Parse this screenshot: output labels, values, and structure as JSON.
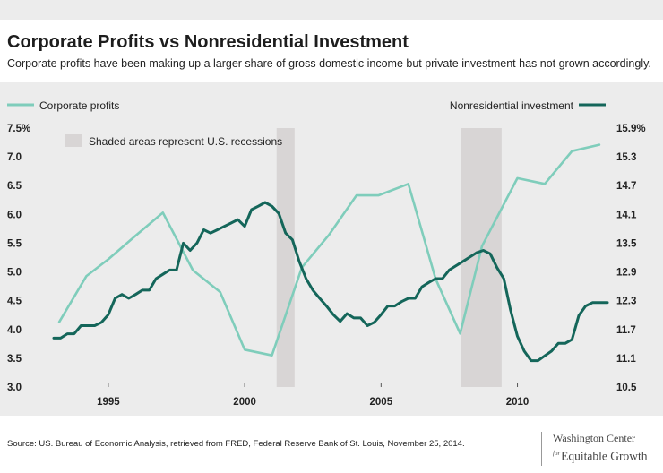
{
  "title": "Corporate Profits vs Nonresidential Investment",
  "subtitle": "Corporate profits have been making up a larger share of gross domestic income but private investment has not grown accordingly.",
  "source": "Source: US. Bureau of Economic Analysis, retrieved from FRED, Federal Reserve Bank of St. Louis, November 25, 2014.",
  "brand": {
    "line1": "Washington Center",
    "for": "for",
    "line2": "Equitable Growth"
  },
  "colors": {
    "profits": "#7fcdbb",
    "investment": "#14665a",
    "recession": "#d8d5d5",
    "panel": "#ececec"
  },
  "chart_data": {
    "type": "line",
    "title": "Corporate Profits vs Nonresidential Investment",
    "legend": {
      "left": "Corporate profits",
      "right": "Nonresidential investment",
      "recession_note": "Shaded areas represent U.S. recessions"
    },
    "x_range": [
      1993,
      2013.3
    ],
    "x_ticks": [
      1995,
      2000,
      2005,
      2010
    ],
    "x_tick_labels": [
      "1995",
      "2000",
      "2005",
      "2010"
    ],
    "y_left": {
      "range": [
        3.0,
        7.5
      ],
      "ticks": [
        3.0,
        3.5,
        4.0,
        4.5,
        5.0,
        5.5,
        6.0,
        6.5,
        7.0,
        7.5
      ],
      "tick_labels": [
        "3.0",
        "3.5",
        "4.0",
        "4.5",
        "5.0",
        "5.5",
        "6.0",
        "6.5",
        "7.0",
        "7.5%"
      ]
    },
    "y_right": {
      "range": [
        10.5,
        15.9
      ],
      "ticks": [
        10.5,
        11.1,
        11.7,
        12.3,
        12.9,
        13.5,
        14.1,
        14.7,
        15.3,
        15.9
      ],
      "tick_labels": [
        "10.5",
        "11.1",
        "11.7",
        "12.3",
        "12.9",
        "13.5",
        "14.1",
        "14.7",
        "15.3",
        "15.9%"
      ]
    },
    "recessions": [
      [
        2001.17,
        2001.83
      ],
      [
        2007.92,
        2009.42
      ]
    ],
    "grid": false,
    "series": [
      {
        "name": "Corporate profits",
        "axis": "left",
        "x": [
          1993.2,
          1994.2,
          1995.0,
          1996.0,
          1997.0,
          1998.1,
          1999.1,
          2000.0,
          2001.0,
          2002.1,
          2003.1,
          2004.1,
          2004.9,
          2006.0,
          2007.0,
          2007.9,
          2008.7,
          2010.0,
          2011.0,
          2012.0,
          2013.0
        ],
        "values": [
          4.13,
          4.93,
          5.22,
          5.63,
          6.03,
          5.03,
          4.65,
          3.65,
          3.55,
          5.08,
          5.65,
          6.33,
          6.33,
          6.53,
          4.88,
          3.93,
          5.45,
          6.63,
          6.53,
          7.1,
          7.21
        ]
      },
      {
        "name": "Nonresidential investment",
        "axis": "right",
        "x": [
          1993.0,
          1993.25,
          1993.5,
          1993.75,
          1994.0,
          1994.25,
          1994.5,
          1994.75,
          1995.0,
          1995.25,
          1995.5,
          1995.75,
          1996.0,
          1996.25,
          1996.5,
          1996.75,
          1997.0,
          1997.25,
          1997.5,
          1997.75,
          1998.0,
          1998.25,
          1998.5,
          1998.75,
          1999.0,
          1999.25,
          1999.5,
          1999.75,
          2000.0,
          2000.25,
          2000.5,
          2000.75,
          2001.0,
          2001.25,
          2001.5,
          2001.75,
          2002.0,
          2002.25,
          2002.5,
          2002.75,
          2003.0,
          2003.25,
          2003.5,
          2003.75,
          2004.0,
          2004.25,
          2004.5,
          2004.75,
          2005.0,
          2005.25,
          2005.5,
          2005.75,
          2006.0,
          2006.25,
          2006.5,
          2006.75,
          2007.0,
          2007.25,
          2007.5,
          2007.75,
          2008.0,
          2008.25,
          2008.5,
          2008.75,
          2009.0,
          2009.25,
          2009.5,
          2009.75,
          2010.0,
          2010.25,
          2010.5,
          2010.75,
          2011.0,
          2011.25,
          2011.5,
          2011.75,
          2012.0,
          2012.25,
          2012.5,
          2012.75,
          2013.0,
          2013.3
        ],
        "values": [
          11.52,
          11.52,
          11.61,
          11.61,
          11.78,
          11.78,
          11.78,
          11.85,
          12.01,
          12.35,
          12.43,
          12.35,
          12.43,
          12.52,
          12.52,
          12.76,
          12.85,
          12.94,
          12.94,
          13.5,
          13.35,
          13.5,
          13.78,
          13.71,
          13.78,
          13.85,
          13.92,
          13.99,
          13.85,
          14.2,
          14.27,
          14.35,
          14.27,
          14.12,
          13.71,
          13.57,
          13.12,
          12.76,
          12.52,
          12.35,
          12.19,
          12.01,
          11.87,
          12.03,
          11.94,
          11.94,
          11.78,
          11.85,
          12.01,
          12.19,
          12.19,
          12.28,
          12.35,
          12.35,
          12.59,
          12.68,
          12.76,
          12.76,
          12.94,
          13.03,
          13.12,
          13.21,
          13.3,
          13.35,
          13.28,
          12.99,
          12.76,
          12.1,
          11.56,
          11.25,
          11.05,
          11.05,
          11.15,
          11.25,
          11.41,
          11.41,
          11.49,
          11.99,
          12.19,
          12.26,
          12.26,
          12.26
        ]
      }
    ]
  }
}
